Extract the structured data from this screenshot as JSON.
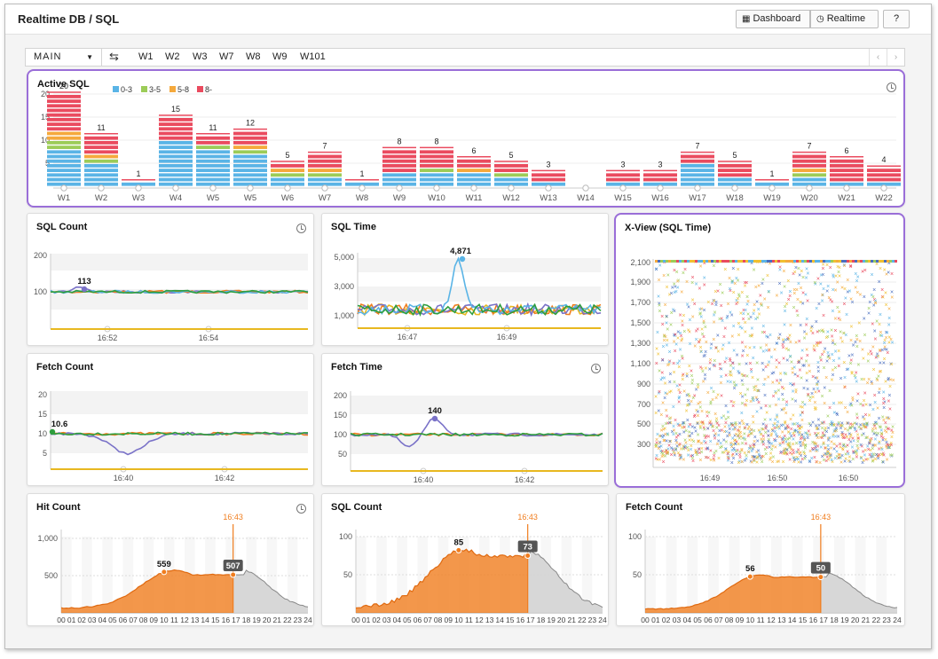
{
  "app": {
    "title": "Realtime DB / SQL"
  },
  "header": {
    "dashboard_label": "Dashboard",
    "realtime_label": "Realtime",
    "help_label": "?"
  },
  "tabs": {
    "selected": "MAIN",
    "items": [
      "W1",
      "W2",
      "W3",
      "W7",
      "W8",
      "W9",
      "W101"
    ]
  },
  "colors": {
    "c03": "#5ab4e6",
    "c35": "#9ccc58",
    "c58": "#f5a93c",
    "c8": "#ea4b5f",
    "orange": "#f07d1e",
    "purple": "#7a72c8",
    "green": "#2e9e3e",
    "yellow": "#e8b820",
    "selected_border": "#9a6ed8"
  },
  "active_sql": {
    "title": "Active SQL",
    "legend": [
      "0-3",
      "3-5",
      "5-8",
      "8-"
    ],
    "y_ticks": [
      "5",
      "10",
      "15",
      "20"
    ],
    "chart_data": {
      "type": "bar",
      "title": "Active SQL",
      "categories": [
        "W1",
        "W2",
        "W3",
        "W4",
        "W5",
        "W5",
        "W6",
        "W7",
        "W8",
        "W9",
        "W10",
        "W11",
        "W12",
        "W13",
        "W14",
        "W15",
        "W16",
        "W17",
        "W18",
        "W19",
        "W20",
        "W21",
        "W22"
      ],
      "series": [
        {
          "name": "0-3",
          "values": [
            8,
            5,
            1,
            10,
            8,
            7,
            2,
            2,
            1,
            3,
            3,
            3,
            2,
            1,
            0,
            1,
            1,
            5,
            2,
            1,
            2,
            1,
            1
          ]
        },
        {
          "name": "3-5",
          "values": [
            2,
            1,
            0,
            0,
            1,
            1,
            1,
            1,
            0,
            0,
            1,
            0,
            1,
            0,
            0,
            0,
            0,
            0,
            0,
            0,
            1,
            0,
            0
          ]
        },
        {
          "name": "5-8",
          "values": [
            2,
            1,
            0,
            0,
            0,
            1,
            1,
            1,
            0,
            0,
            0,
            1,
            0,
            0,
            0,
            0,
            0,
            0,
            0,
            0,
            1,
            0,
            0
          ]
        },
        {
          "name": "8-",
          "values": [
            8,
            4,
            0,
            5,
            2,
            3,
            1,
            3,
            0,
            5,
            4,
            2,
            2,
            2,
            0,
            2,
            2,
            2,
            3,
            0,
            3,
            5,
            3
          ]
        }
      ],
      "totals": [
        20,
        11,
        1,
        15,
        11,
        12,
        5,
        7,
        1,
        8,
        8,
        6,
        5,
        3,
        0,
        3,
        3,
        7,
        5,
        1,
        7,
        6,
        4
      ],
      "ylim": [
        0,
        22
      ]
    }
  },
  "sql_count": {
    "title": "SQL Count",
    "y_ticks": [
      "100",
      "200"
    ],
    "x_ticks": [
      "16:52",
      "16:54"
    ],
    "peak_label": "113"
  },
  "sql_time": {
    "title": "SQL Time",
    "y_ticks": [
      "1,000",
      "3,000",
      "5,000"
    ],
    "x_ticks": [
      "16:47",
      "16:49"
    ],
    "peak_label": "4,871"
  },
  "fetch_count": {
    "title": "Fetch Count",
    "y_ticks": [
      "5",
      "10",
      "15",
      "20"
    ],
    "x_ticks": [
      "16:40",
      "16:42"
    ],
    "peak_label": "10.6"
  },
  "fetch_time": {
    "title": "Fetch Time",
    "y_ticks": [
      "50",
      "100",
      "150",
      "200"
    ],
    "x_ticks": [
      "16:40",
      "16:42"
    ],
    "peak_label": "140"
  },
  "xview": {
    "title": "X-View (SQL Time)",
    "y_ticks": [
      "300",
      "500",
      "700",
      "900",
      "1,100",
      "1,300",
      "1,500",
      "1,700",
      "1,900",
      "2,100"
    ],
    "x_ticks": [
      "16:49",
      "16:50",
      "16:50"
    ]
  },
  "hit_count": {
    "title": "Hit Count",
    "y_ticks": [
      "500",
      "1,000"
    ],
    "marker_time": "16:43",
    "peak_label": "559",
    "current_label": "507"
  },
  "sql_count_daily": {
    "title": "SQL Count",
    "y_ticks": [
      "50",
      "100"
    ],
    "marker_time": "16:43",
    "peak_label": "85",
    "current_label": "73"
  },
  "fetch_count_daily": {
    "title": "Fetch Count",
    "y_ticks": [
      "50",
      "100"
    ],
    "marker_time": "16:43",
    "peak_label": "56",
    "current_label": "50"
  },
  "hours": [
    "00",
    "01",
    "02",
    "03",
    "04",
    "05",
    "06",
    "07",
    "08",
    "09",
    "10",
    "11",
    "12",
    "13",
    "14",
    "15",
    "16",
    "17",
    "18",
    "19",
    "20",
    "21",
    "22",
    "23",
    "24"
  ]
}
